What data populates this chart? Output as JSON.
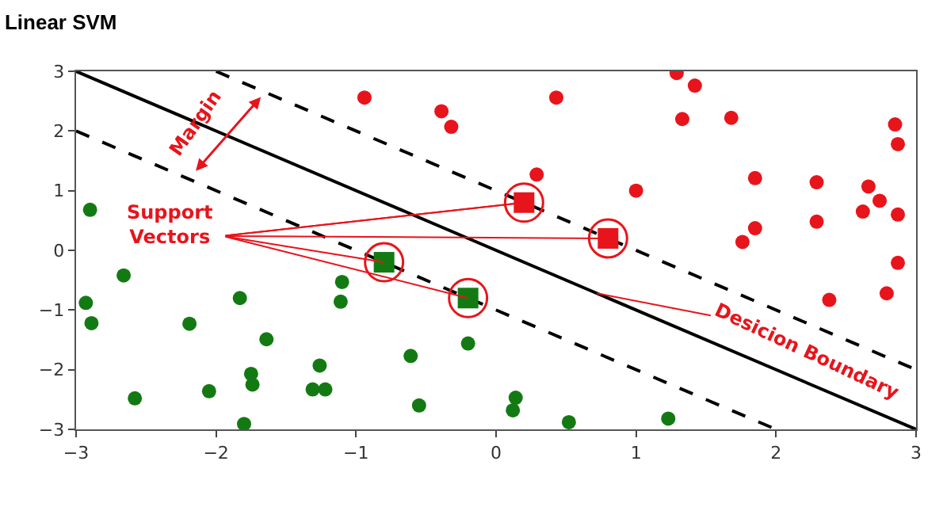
{
  "chart_data": {
    "type": "scatter",
    "title": "Linear SVM",
    "xlim": [
      -3,
      3
    ],
    "ylim": [
      -3,
      3
    ],
    "xticks": [
      -3,
      -2,
      -1,
      0,
      1,
      2,
      3
    ],
    "yticks": [
      -3,
      -2,
      -1,
      0,
      1,
      2,
      3
    ],
    "grid": false,
    "marker": "circle",
    "series": [
      {
        "color": "#e8141b",
        "x": [
          -0.94,
          -0.39,
          -0.32,
          0.43,
          1.29,
          1.42,
          1.33,
          1.68,
          2.85,
          2.87,
          0.29,
          1.0,
          1.85,
          2.29,
          2.66,
          2.74,
          2.62,
          2.87,
          2.29,
          1.85,
          1.76,
          2.87,
          2.79,
          2.38
        ],
        "values": [
          2.56,
          2.33,
          2.07,
          2.56,
          2.97,
          2.76,
          2.2,
          2.22,
          2.11,
          1.78,
          1.27,
          1.0,
          1.21,
          1.14,
          1.07,
          0.83,
          0.65,
          0.6,
          0.48,
          0.37,
          0.14,
          -0.21,
          -0.72,
          -0.83
        ]
      },
      {
        "color": "#137a13",
        "x": [
          -2.9,
          -2.93,
          -2.89,
          -2.66,
          -2.58,
          -2.19,
          -2.05,
          -1.83,
          -1.8,
          -1.75,
          -1.74,
          -1.64,
          -1.26,
          -1.31,
          -1.22,
          -1.1,
          -1.11,
          -0.61,
          -0.55,
          -0.2,
          0.14,
          0.12,
          0.52,
          1.23
        ],
        "values": [
          0.68,
          -0.88,
          -1.22,
          -0.42,
          -2.48,
          -1.23,
          -2.36,
          -0.8,
          -2.91,
          -2.07,
          -2.25,
          -1.49,
          -1.93,
          -2.33,
          -2.33,
          -0.53,
          -0.86,
          -1.77,
          -2.6,
          -1.56,
          -2.47,
          -2.68,
          -2.88,
          -2.82
        ]
      },
      {
        "color": "#e8141b",
        "marker": "square",
        "x": [
          0.2,
          0.8
        ],
        "values": [
          0.8,
          0.2
        ]
      },
      {
        "color": "#137a13",
        "marker": "square",
        "x": [
          -0.8,
          -0.2
        ],
        "values": [
          -0.2,
          -0.8
        ]
      },
      {
        "type": "line",
        "marker": "none",
        "color": "#000000",
        "line_style": "solid",
        "x": [
          -3,
          3
        ],
        "values": [
          3,
          -3
        ]
      },
      {
        "type": "line",
        "marker": "none",
        "color": "#000000",
        "line_style": "dashed",
        "x": [
          -2,
          3
        ],
        "values": [
          3,
          -2
        ]
      },
      {
        "type": "line",
        "marker": "none",
        "color": "#000000",
        "line_style": "dashed",
        "x": [
          -3,
          2
        ],
        "values": [
          2,
          -3
        ]
      }
    ],
    "annotations": [
      "Margin",
      {
        "text": "Support Vectors",
        "x": 0.2,
        "y": 0.8
      },
      {
        "text": "Desicion Boundary",
        "x": 0.72,
        "y": -0.72
      }
    ]
  }
}
